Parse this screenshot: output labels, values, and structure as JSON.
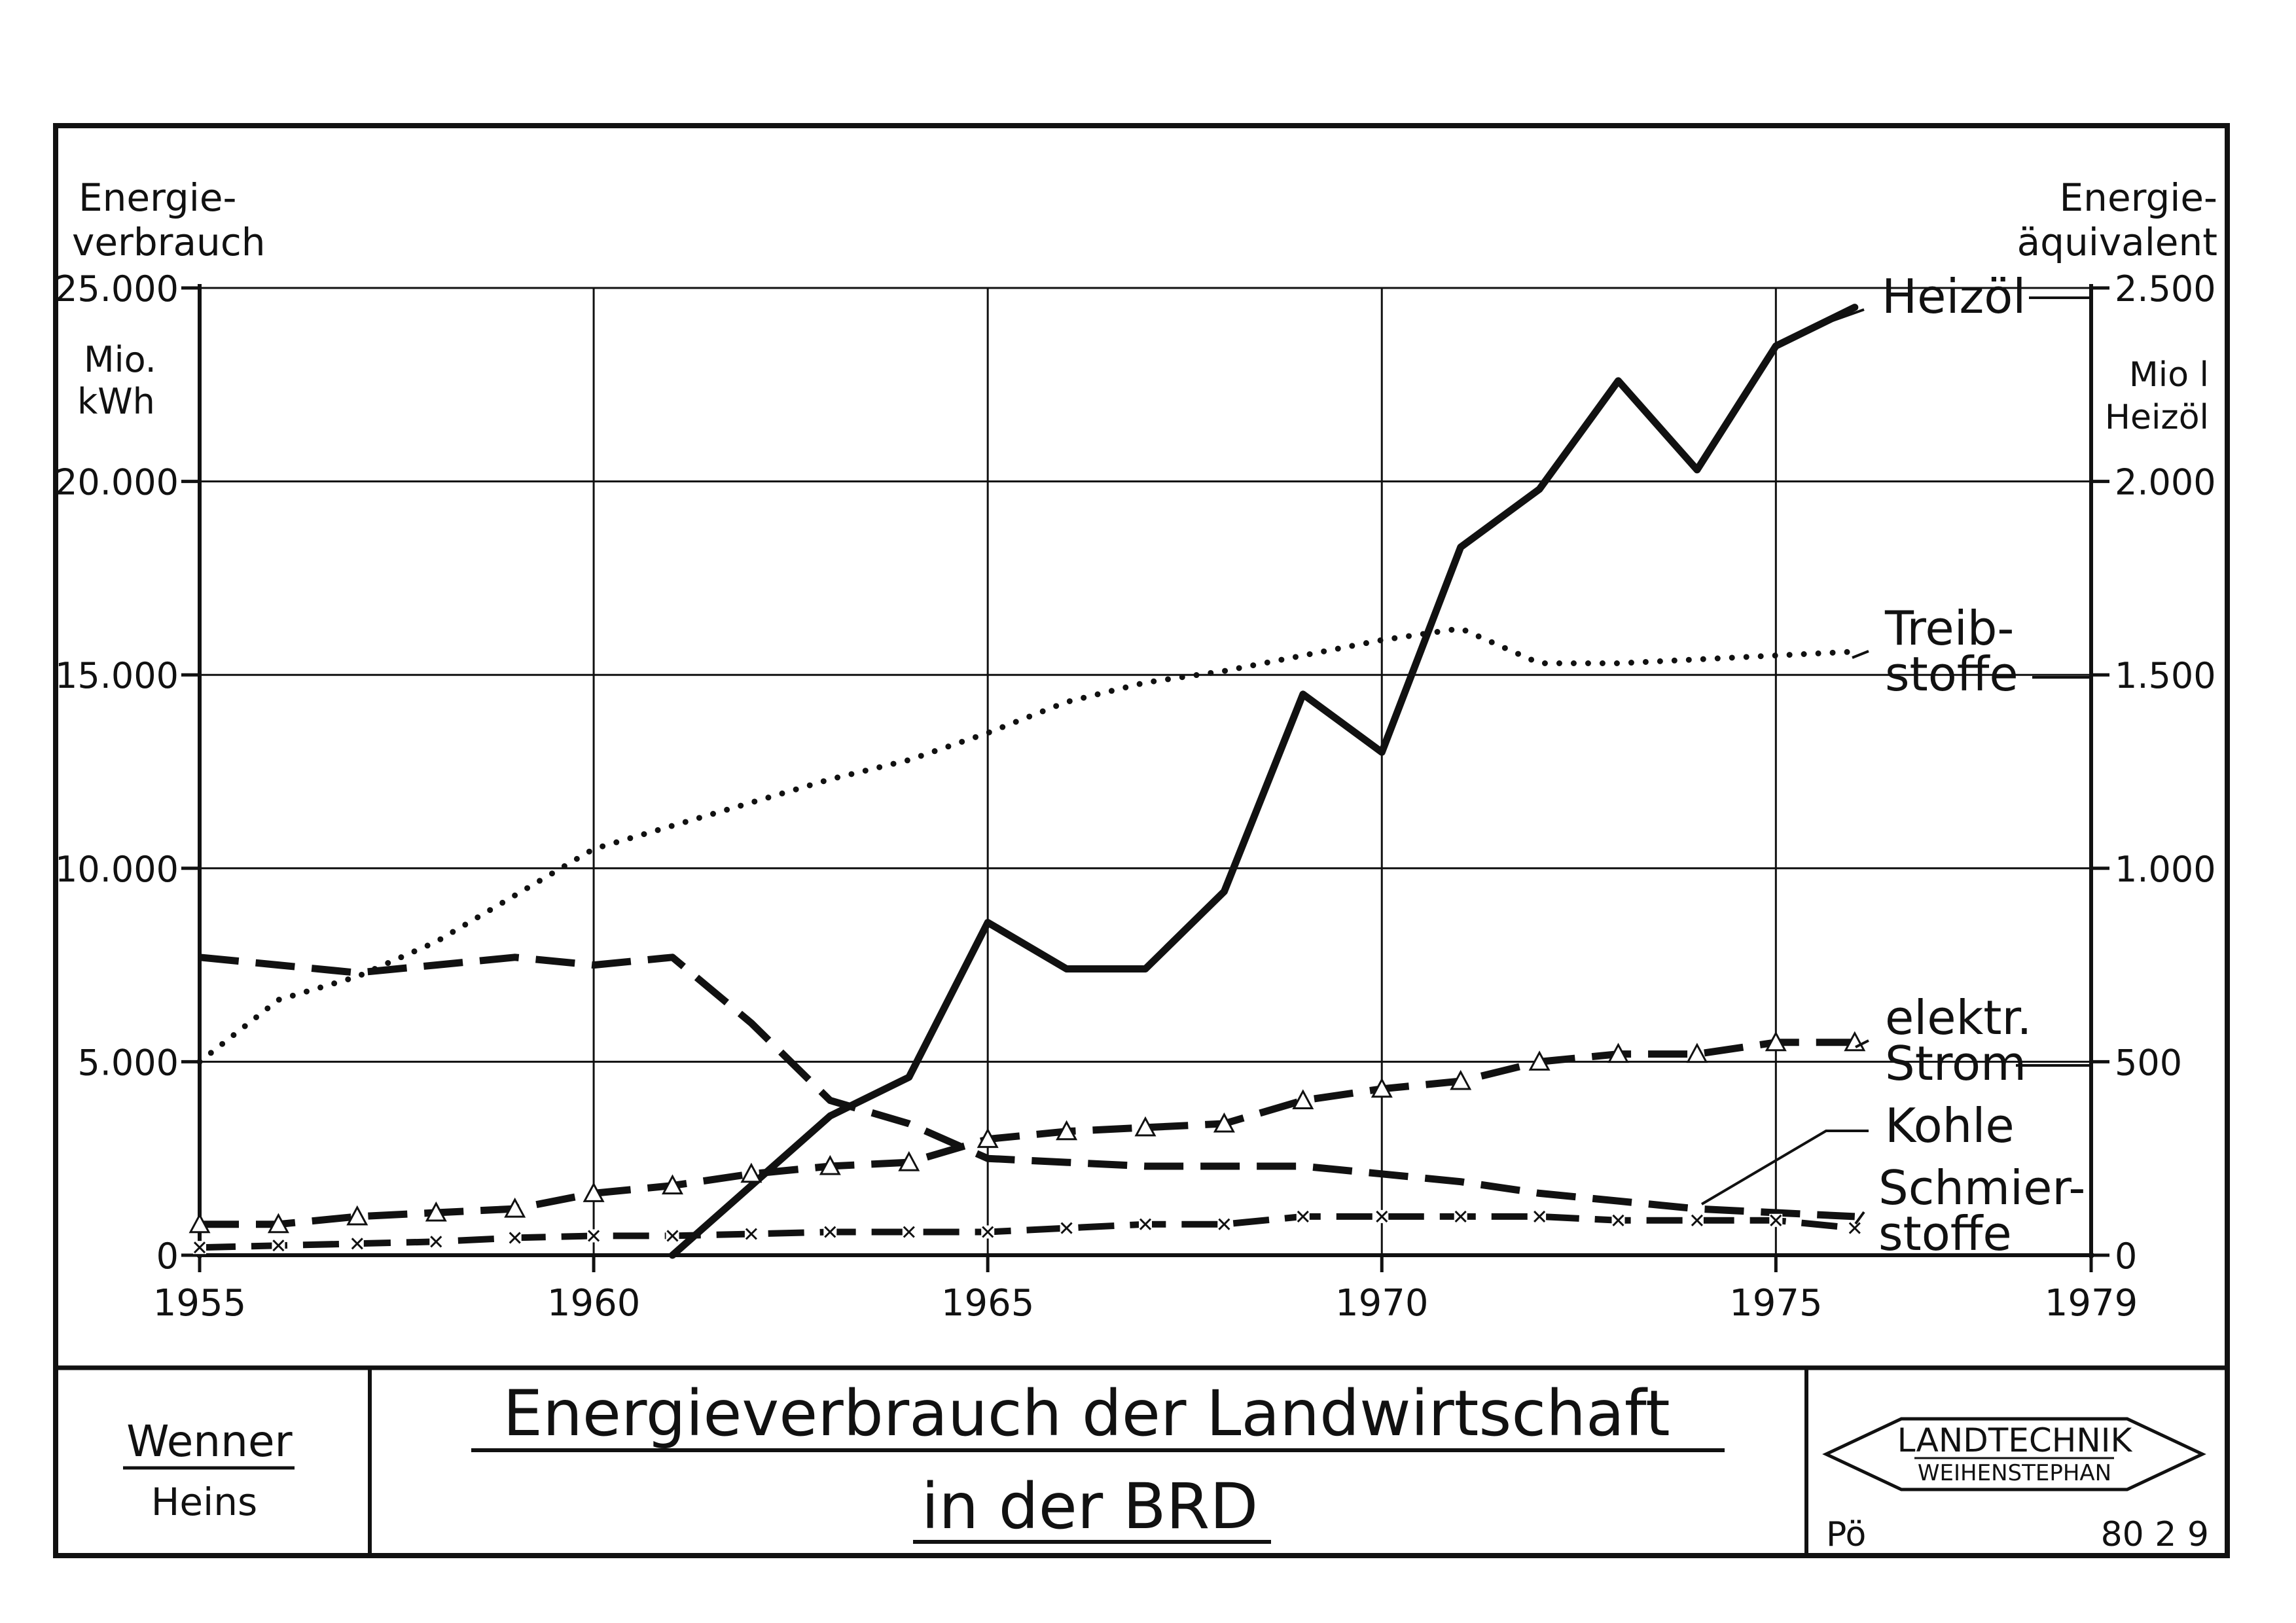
{
  "chart_data": {
    "type": "line",
    "left_axis": {
      "label_line1": "Energie-",
      "label_line2": "verbrauch",
      "unit_line1": "Mio.",
      "unit_line2": "kWh",
      "ylim": [
        0,
        25000
      ],
      "ticks": [
        {
          "value": 0,
          "label": "0"
        },
        {
          "value": 5000,
          "label": "5.000"
        },
        {
          "value": 10000,
          "label": "10.000"
        },
        {
          "value": 15000,
          "label": "15.000"
        },
        {
          "value": 20000,
          "label": "20.000"
        },
        {
          "value": 25000,
          "label": "25.000"
        }
      ]
    },
    "right_axis": {
      "label_line1": "Energie-",
      "label_line2": "äquivalent",
      "unit_line1": "Mio l",
      "unit_line2": "Heizöl",
      "ylim": [
        0,
        2500
      ],
      "ticks": [
        {
          "value": 0,
          "label": "0"
        },
        {
          "value": 500,
          "label": "500"
        },
        {
          "value": 1000,
          "label": "1.000"
        },
        {
          "value": 1500,
          "label": "1.500"
        },
        {
          "value": 2000,
          "label": "2.000"
        },
        {
          "value": 2500,
          "label": "2.500"
        }
      ]
    },
    "x_axis": {
      "xlim": [
        1955,
        1979
      ],
      "ticks": [
        {
          "value": 1955,
          "label": "1955"
        },
        {
          "value": 1960,
          "label": "1960"
        },
        {
          "value": 1965,
          "label": "1965"
        },
        {
          "value": 1970,
          "label": "1970"
        },
        {
          "value": 1975,
          "label": "1975"
        },
        {
          "value": 1979,
          "label": "1979"
        }
      ]
    },
    "grid": true,
    "series": [
      {
        "key": "heizoel",
        "name_lines": [
          "Heizöl"
        ],
        "style": "solid",
        "x": [
          1961,
          1962,
          1963,
          1964,
          1965,
          1966,
          1967,
          1968,
          1969,
          1970,
          1971,
          1972,
          1973,
          1974,
          1975,
          1976
        ],
        "values": [
          0,
          1800,
          3600,
          4600,
          8600,
          7400,
          7400,
          9400,
          14500,
          13000,
          18300,
          19800,
          22600,
          20300,
          23500,
          24500
        ]
      },
      {
        "key": "treibstoffe",
        "name_lines": [
          "Treib-",
          "stoffe"
        ],
        "style": "dotted",
        "x": [
          1955,
          1956,
          1957,
          1958,
          1959,
          1960,
          1961,
          1962,
          1963,
          1964,
          1965,
          1966,
          1967,
          1968,
          1969,
          1970,
          1971,
          1972,
          1973,
          1974,
          1975,
          1976
        ],
        "values": [
          5000,
          6600,
          7200,
          8100,
          9300,
          10500,
          11100,
          11700,
          12300,
          12800,
          13500,
          14300,
          14800,
          15100,
          15500,
          15900,
          16200,
          15300,
          15300,
          15400,
          15500,
          15600
        ]
      },
      {
        "key": "strom",
        "name_lines": [
          "elektr.",
          "Strom"
        ],
        "style": "dashed-triangle",
        "x": [
          1955,
          1956,
          1957,
          1958,
          1959,
          1960,
          1961,
          1962,
          1963,
          1964,
          1965,
          1966,
          1967,
          1968,
          1969,
          1970,
          1971,
          1972,
          1973,
          1974,
          1975,
          1976
        ],
        "values": [
          800,
          800,
          1000,
          1100,
          1200,
          1600,
          1800,
          2100,
          2300,
          2400,
          3000,
          3200,
          3300,
          3400,
          4000,
          4300,
          4500,
          5000,
          5200,
          5200,
          5500,
          5500
        ]
      },
      {
        "key": "kohle",
        "name_lines": [
          "Kohle"
        ],
        "style": "dashed",
        "x": [
          1955,
          1956,
          1957,
          1958,
          1959,
          1960,
          1961,
          1962,
          1963,
          1964,
          1965,
          1966,
          1967,
          1968,
          1969,
          1970,
          1971,
          1972,
          1973,
          1974,
          1975,
          1976
        ],
        "values": [
          7700,
          7500,
          7300,
          7500,
          7700,
          7500,
          7700,
          6000,
          4000,
          3400,
          2500,
          2400,
          2300,
          2300,
          2300,
          2100,
          1900,
          1600,
          1400,
          1200,
          1100,
          1000
        ]
      },
      {
        "key": "schmierstoffe",
        "name_lines": [
          "Schmier-",
          "stoffe"
        ],
        "style": "dashed-cross",
        "x": [
          1955,
          1956,
          1957,
          1958,
          1959,
          1960,
          1961,
          1962,
          1963,
          1964,
          1965,
          1966,
          1967,
          1968,
          1969,
          1970,
          1971,
          1972,
          1973,
          1974,
          1975,
          1976
        ],
        "values": [
          200,
          250,
          300,
          350,
          450,
          500,
          500,
          550,
          600,
          600,
          600,
          700,
          800,
          800,
          1000,
          1000,
          1000,
          1000,
          900,
          900,
          900,
          700
        ]
      }
    ]
  },
  "footer": {
    "authors": {
      "main": "Wenner",
      "second": "Heins"
    },
    "title_line1": "Energieverbrauch der Landwirtschaft",
    "title_line2": "in der BRD",
    "logo": {
      "line1": "LANDTECHNIK",
      "line2": "WEIHENSTEPHAN"
    },
    "initials": "Pö",
    "code": "80 2 9"
  }
}
